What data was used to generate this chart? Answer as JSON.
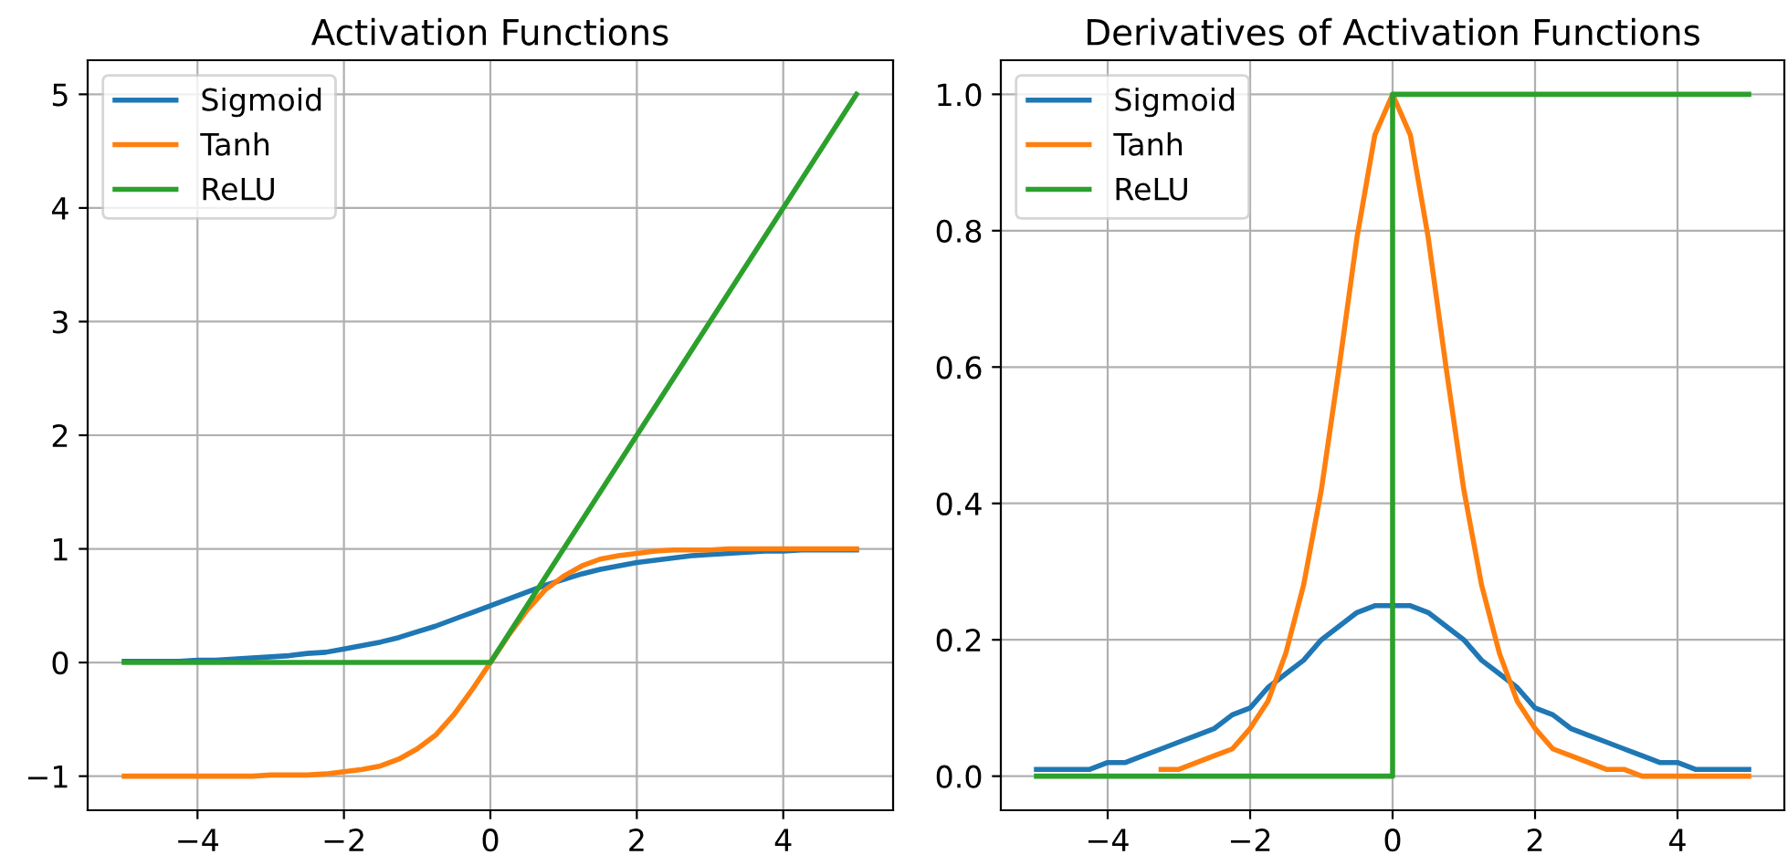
{
  "chart_data": [
    {
      "type": "line",
      "title": "Activation Functions",
      "grid": true,
      "legend": "top left",
      "x": [
        -5,
        -4.75,
        -4.5,
        -4.25,
        -4,
        -3.75,
        -3.5,
        -3.25,
        -3,
        -2.75,
        -2.5,
        -2.25,
        -2,
        -1.75,
        -1.5,
        -1.25,
        -1,
        -0.75,
        -0.5,
        -0.25,
        0,
        0.25,
        0.5,
        0.75,
        1,
        1.25,
        1.5,
        1.75,
        2,
        2.25,
        2.5,
        2.75,
        3,
        3.25,
        3.5,
        3.75,
        4,
        4.25,
        4.5,
        4.75,
        5
      ],
      "xlim": [
        -5.5,
        5.5
      ],
      "ylim": [
        -1.3,
        5.3
      ],
      "xticks": [
        -4,
        -2,
        0,
        2,
        4
      ],
      "yticks": [
        -1,
        0,
        1,
        2,
        3,
        4,
        5
      ],
      "series": [
        {
          "name": "Sigmoid",
          "color": "#1f77b4",
          "values": [
            0.01,
            0.01,
            0.01,
            0.01,
            0.02,
            0.02,
            0.03,
            0.04,
            0.05,
            0.06,
            0.08,
            0.09,
            0.12,
            0.15,
            0.18,
            0.22,
            0.27,
            0.32,
            0.38,
            0.44,
            0.5,
            0.56,
            0.62,
            0.68,
            0.73,
            0.78,
            0.82,
            0.85,
            0.88,
            0.9,
            0.92,
            0.94,
            0.95,
            0.96,
            0.97,
            0.98,
            0.98,
            0.99,
            0.99,
            0.99,
            0.99
          ]
        },
        {
          "name": "Tanh",
          "color": "#ff7f0e",
          "values": [
            -1,
            -1,
            -1,
            -1,
            -1,
            -1,
            -1,
            -1,
            -0.99,
            -0.99,
            -0.99,
            -0.98,
            -0.96,
            -0.94,
            -0.91,
            -0.85,
            -0.76,
            -0.64,
            -0.46,
            -0.24,
            0,
            0.24,
            0.46,
            0.64,
            0.76,
            0.85,
            0.91,
            0.94,
            0.96,
            0.98,
            0.99,
            0.99,
            0.99,
            1,
            1,
            1,
            1,
            1,
            1,
            1,
            1
          ]
        },
        {
          "name": "ReLU",
          "color": "#2ca02c",
          "x": [
            -5,
            0,
            5
          ],
          "values": [
            0,
            0,
            5
          ]
        }
      ]
    },
    {
      "type": "line",
      "title": "Derivatives of Activation Functions",
      "grid": true,
      "legend": "top left",
      "x": [
        -5,
        -4.75,
        -4.5,
        -4.25,
        -4,
        -3.75,
        -3.5,
        -3.25,
        -3,
        -2.75,
        -2.5,
        -2.25,
        -2,
        -1.75,
        -1.5,
        -1.25,
        -1,
        -0.75,
        -0.5,
        -0.25,
        0,
        0.25,
        0.5,
        0.75,
        1,
        1.25,
        1.5,
        1.75,
        2,
        2.25,
        2.5,
        2.75,
        3,
        3.25,
        3.5,
        3.75,
        4,
        4.25,
        4.5,
        4.75,
        5
      ],
      "xlim": [
        -5.5,
        5.5
      ],
      "ylim": [
        -0.05,
        1.05
      ],
      "xticks": [
        -4,
        -2,
        0,
        2,
        4
      ],
      "yticks": [
        {
          "value": 0,
          "label": "0.0"
        },
        0.2,
        0.4,
        0.6,
        0.8,
        {
          "value": 1,
          "label": "1.0"
        }
      ],
      "series": [
        {
          "name": "Sigmoid",
          "color": "#1f77b4",
          "values": [
            0.01,
            0.01,
            0.01,
            0.01,
            0.02,
            0.02,
            0.03,
            0.04,
            0.05,
            0.06,
            0.07,
            0.09,
            0.1,
            0.13,
            0.15,
            0.17,
            0.2,
            0.22,
            0.24,
            0.25,
            0.25,
            0.25,
            0.24,
            0.22,
            0.2,
            0.17,
            0.15,
            0.13,
            0.1,
            0.09,
            0.07,
            0.06,
            0.05,
            0.04,
            0.03,
            0.02,
            0.02,
            0.01,
            0.01,
            0.01,
            0.01
          ]
        },
        {
          "name": "Tanh",
          "color": "#ff7f0e",
          "values": [
            null,
            null,
            null,
            null,
            null,
            null,
            null,
            0.01,
            0.01,
            0.02,
            0.03,
            0.04,
            0.07,
            0.11,
            0.18,
            0.28,
            0.42,
            0.6,
            0.79,
            0.94,
            1,
            0.94,
            0.79,
            0.6,
            0.42,
            0.28,
            0.18,
            0.11,
            0.07,
            0.04,
            0.03,
            0.02,
            0.01,
            0.01,
            0,
            0,
            0,
            0,
            0,
            0,
            0
          ]
        },
        {
          "name": "ReLU",
          "color": "#2ca02c",
          "x": [
            -5,
            0,
            0,
            5
          ],
          "values": [
            0,
            0,
            1,
            1
          ]
        }
      ]
    }
  ]
}
